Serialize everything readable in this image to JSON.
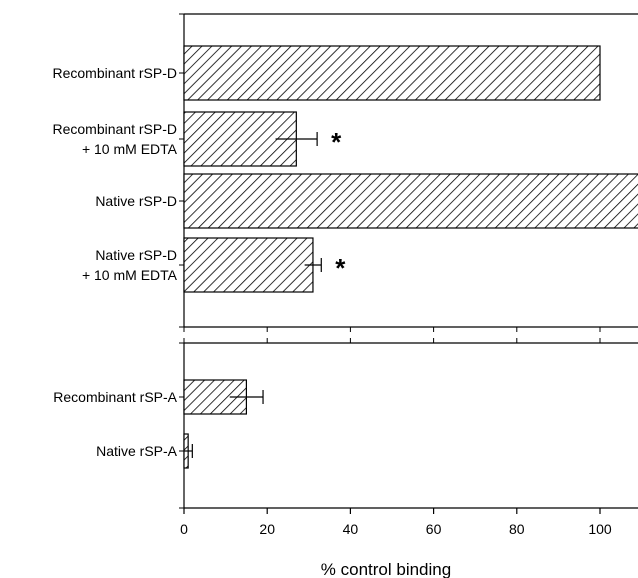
{
  "chart_data": {
    "type": "bar",
    "orientation": "horizontal",
    "xlabel": "% control binding",
    "xlim": [
      0,
      115
    ],
    "x_ticks": [
      0,
      20,
      40,
      60,
      80,
      100
    ],
    "x_tick_labels": [
      "0",
      "20",
      "40",
      "60",
      "80",
      "100"
    ],
    "grid": false,
    "legend": "none",
    "bar_pattern": "diagonal-hatch",
    "panels": [
      {
        "id": "sp-d",
        "bars": [
          {
            "label_lines": [
              "Recombinant rSP-D"
            ],
            "value": 100,
            "error": 0,
            "significant": false
          },
          {
            "label_lines": [
              "Recombinant rSP-D",
              "+ 10 mM EDTA"
            ],
            "value": 27,
            "error": 5,
            "significant": true
          },
          {
            "label_lines": [
              "Native rSP-D"
            ],
            "value": 115,
            "error": 2,
            "significant": false
          },
          {
            "label_lines": [
              "Native rSP-D",
              "+ 10 mM EDTA"
            ],
            "value": 31,
            "error": 2,
            "significant": true
          }
        ]
      },
      {
        "id": "sp-a",
        "bars": [
          {
            "label_lines": [
              "Recombinant rSP-A"
            ],
            "value": 15,
            "error": 4,
            "significant": false
          },
          {
            "label_lines": [
              "Native rSP-A"
            ],
            "value": 1,
            "error": 1,
            "significant": false
          }
        ]
      }
    ],
    "significance_marker": "*"
  }
}
